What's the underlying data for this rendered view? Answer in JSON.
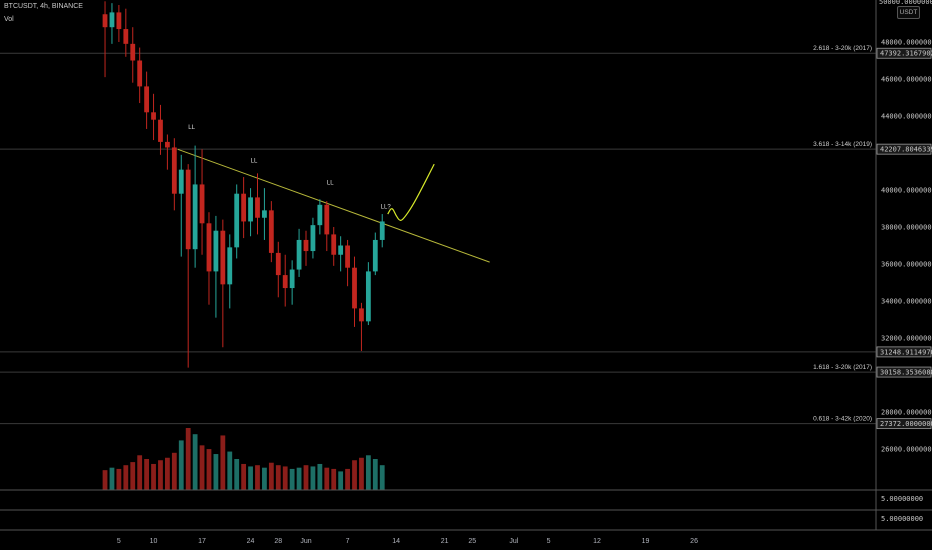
{
  "header": {
    "title": "BTCUSDT, 4h, BINANCE",
    "volume_label": "Vol",
    "currency_badge": "USDT"
  },
  "colors": {
    "up": "#26a69a",
    "down": "#c2261f",
    "trendline": "#b7b83a",
    "projection": "#d6e82a",
    "grid": "#2a2a2a",
    "background": "#000000"
  },
  "chart_data": {
    "type": "candlestick",
    "title": "",
    "ylim": [
      25000,
      50000
    ],
    "y_ticks": [
      "26000.00000000",
      "28000.00000000",
      "32000.00000000",
      "34000.00000000",
      "36000.00000000",
      "38000.00000000",
      "40000.00000000",
      "44000.00000000",
      "46000.00000000",
      "48000.00000000"
    ],
    "y_top_label": "50000.00000000",
    "x_ticks": [
      "5",
      "10",
      "17",
      "24",
      "28",
      "Jun",
      "7",
      "14",
      "21",
      "25",
      "Jul",
      "5",
      "12",
      "19",
      "26"
    ],
    "x_tick_days": [
      -26,
      -21,
      -14,
      -7,
      -3,
      1,
      7,
      14,
      21,
      25,
      31,
      36,
      43,
      50,
      57
    ],
    "candles": [
      {
        "day": -28,
        "o": 49500,
        "h": 50200,
        "c": 48800,
        "l": 46100
      },
      {
        "day": -27,
        "o": 48800,
        "h": 50100,
        "c": 49600,
        "l": 47900
      },
      {
        "day": -26,
        "o": 49600,
        "h": 50000,
        "c": 48700,
        "l": 48000
      },
      {
        "day": -25,
        "o": 48700,
        "h": 49800,
        "c": 47900,
        "l": 47200
      },
      {
        "day": -24,
        "o": 47900,
        "h": 48800,
        "c": 47000,
        "l": 45800
      },
      {
        "day": -23,
        "o": 47000,
        "h": 47700,
        "c": 45600,
        "l": 44700
      },
      {
        "day": -22,
        "o": 45600,
        "h": 46400,
        "c": 44200,
        "l": 43300
      },
      {
        "day": -21,
        "o": 44200,
        "h": 45200,
        "c": 43800,
        "l": 42700
      },
      {
        "day": -20,
        "o": 43800,
        "h": 44600,
        "c": 42600,
        "l": 41900
      },
      {
        "day": -19,
        "o": 42600,
        "h": 43000,
        "c": 42300,
        "l": 41100
      },
      {
        "day": -18,
        "o": 42300,
        "h": 42800,
        "c": 39800,
        "l": 38900
      },
      {
        "day": -17,
        "o": 39800,
        "h": 41900,
        "c": 41100,
        "l": 36400
      },
      {
        "day": -16,
        "o": 41100,
        "h": 41400,
        "c": 36800,
        "l": 30400
      },
      {
        "day": -15,
        "o": 36800,
        "h": 42400,
        "c": 40300,
        "l": 35800
      },
      {
        "day": -14,
        "o": 40300,
        "h": 42200,
        "c": 38200,
        "l": 36500
      },
      {
        "day": -13,
        "o": 38200,
        "h": 38800,
        "c": 35600,
        "l": 33800
      },
      {
        "day": -12,
        "o": 35600,
        "h": 38600,
        "c": 37800,
        "l": 33100
      },
      {
        "day": -11,
        "o": 37800,
        "h": 38400,
        "c": 34900,
        "l": 31500
      },
      {
        "day": -10,
        "o": 34900,
        "h": 37600,
        "c": 36900,
        "l": 33600
      },
      {
        "day": -9,
        "o": 36900,
        "h": 40300,
        "c": 39800,
        "l": 36300
      },
      {
        "day": -8,
        "o": 39800,
        "h": 40700,
        "c": 38300,
        "l": 37400
      },
      {
        "day": -7,
        "o": 38300,
        "h": 40100,
        "c": 39600,
        "l": 37500
      },
      {
        "day": -6,
        "o": 39600,
        "h": 40900,
        "c": 38500,
        "l": 37600
      },
      {
        "day": -5,
        "o": 38500,
        "h": 40100,
        "c": 38900,
        "l": 37300
      },
      {
        "day": -4,
        "o": 38900,
        "h": 39400,
        "c": 36600,
        "l": 36100
      },
      {
        "day": -3,
        "o": 36600,
        "h": 37200,
        "c": 35400,
        "l": 34200
      },
      {
        "day": -2,
        "o": 35400,
        "h": 36500,
        "c": 34700,
        "l": 33700
      },
      {
        "day": -1,
        "o": 34700,
        "h": 36200,
        "c": 35700,
        "l": 33800
      },
      {
        "day": 0,
        "o": 35700,
        "h": 37900,
        "c": 37300,
        "l": 35300
      },
      {
        "day": 1,
        "o": 37300,
        "h": 37800,
        "c": 36700,
        "l": 35900
      },
      {
        "day": 2,
        "o": 36700,
        "h": 38500,
        "c": 38100,
        "l": 36300
      },
      {
        "day": 3,
        "o": 38100,
        "h": 39500,
        "c": 39200,
        "l": 37600
      },
      {
        "day": 4,
        "o": 39200,
        "h": 39400,
        "c": 37600,
        "l": 36700
      },
      {
        "day": 5,
        "o": 37600,
        "h": 38000,
        "c": 36500,
        "l": 35900
      },
      {
        "day": 6,
        "o": 36500,
        "h": 37500,
        "c": 37000,
        "l": 35600
      },
      {
        "day": 7,
        "o": 37000,
        "h": 37300,
        "c": 35800,
        "l": 34800
      },
      {
        "day": 8,
        "o": 35800,
        "h": 36400,
        "c": 33600,
        "l": 32600
      },
      {
        "day": 9,
        "o": 33600,
        "h": 33900,
        "c": 32900,
        "l": 31300
      },
      {
        "day": 10,
        "o": 32900,
        "h": 36100,
        "c": 35600,
        "l": 32700
      },
      {
        "day": 11,
        "o": 35600,
        "h": 37700,
        "c": 37300,
        "l": 35400
      },
      {
        "day": 12,
        "o": 37300,
        "h": 38700,
        "c": 38300,
        "l": 36900
      }
    ],
    "volumes": [
      {
        "day": -28,
        "v": 0.32
      },
      {
        "day": -27,
        "v": 0.36
      },
      {
        "day": -26,
        "v": 0.34
      },
      {
        "day": -25,
        "v": 0.4
      },
      {
        "day": -24,
        "v": 0.45
      },
      {
        "day": -23,
        "v": 0.56
      },
      {
        "day": -22,
        "v": 0.5
      },
      {
        "day": -21,
        "v": 0.42
      },
      {
        "day": -20,
        "v": 0.48
      },
      {
        "day": -19,
        "v": 0.52
      },
      {
        "day": -18,
        "v": 0.6
      },
      {
        "day": -17,
        "v": 0.8
      },
      {
        "day": -16,
        "v": 1.0
      },
      {
        "day": -15,
        "v": 0.9
      },
      {
        "day": -14,
        "v": 0.72
      },
      {
        "day": -13,
        "v": 0.66
      },
      {
        "day": -12,
        "v": 0.58
      },
      {
        "day": -11,
        "v": 0.88
      },
      {
        "day": -10,
        "v": 0.62
      },
      {
        "day": -9,
        "v": 0.5
      },
      {
        "day": -8,
        "v": 0.42
      },
      {
        "day": -7,
        "v": 0.38
      },
      {
        "day": -6,
        "v": 0.4
      },
      {
        "day": -5,
        "v": 0.36
      },
      {
        "day": -4,
        "v": 0.44
      },
      {
        "day": -3,
        "v": 0.4
      },
      {
        "day": -2,
        "v": 0.38
      },
      {
        "day": -1,
        "v": 0.34
      },
      {
        "day": 0,
        "v": 0.36
      },
      {
        "day": 1,
        "v": 0.4
      },
      {
        "day": 2,
        "v": 0.38
      },
      {
        "day": 3,
        "v": 0.42
      },
      {
        "day": 4,
        "v": 0.36
      },
      {
        "day": 5,
        "v": 0.34
      },
      {
        "day": 6,
        "v": 0.3
      },
      {
        "day": 7,
        "v": 0.34
      },
      {
        "day": 8,
        "v": 0.48
      },
      {
        "day": 9,
        "v": 0.52
      },
      {
        "day": 10,
        "v": 0.56
      },
      {
        "day": 11,
        "v": 0.5
      },
      {
        "day": 12,
        "v": 0.4
      }
    ],
    "fib_levels": [
      {
        "price": 47392.31679029,
        "label": "2.618 - 3-20k (2017)",
        "value_text": "47392.31679029"
      },
      {
        "price": 42207.80463396,
        "label": "3.618 - 3-14k (2019)",
        "value_text": "42207.80463396"
      },
      {
        "price": 31248.91149765,
        "label": "",
        "value_text": "31248.91149765"
      },
      {
        "price": 30158.3536088,
        "label": "1.618 - 3-20k (2017)",
        "value_text": "30158.35360880"
      },
      {
        "price": 27372.0,
        "label": "0.618 - 3-42k (2020)",
        "value_text": "27372.00000000"
      }
    ],
    "trendline": {
      "from": {
        "day": -17.5,
        "price": 42200
      },
      "to": {
        "day": 27.5,
        "price": 36100
      }
    },
    "projection": [
      {
        "day": 12.8,
        "price": 38700
      },
      {
        "day": 13.4,
        "price": 39100
      },
      {
        "day": 14.0,
        "price": 38600
      },
      {
        "day": 14.6,
        "price": 38300
      },
      {
        "day": 15.2,
        "price": 38500
      },
      {
        "day": 16.3,
        "price": 39100
      },
      {
        "day": 17.6,
        "price": 40000
      },
      {
        "day": 19.5,
        "price": 41400
      }
    ],
    "annotations": [
      {
        "text": "LL",
        "day": -15.5,
        "price": 43300
      },
      {
        "text": "LL",
        "day": -6.5,
        "price": 41500
      },
      {
        "text": "LL",
        "day": 4.5,
        "price": 40300
      },
      {
        "text": "LL?",
        "day": 12.5,
        "price": 39000
      }
    ],
    "lower_pane": {
      "labels": [
        "5.00000000",
        "5.00000000"
      ]
    }
  }
}
